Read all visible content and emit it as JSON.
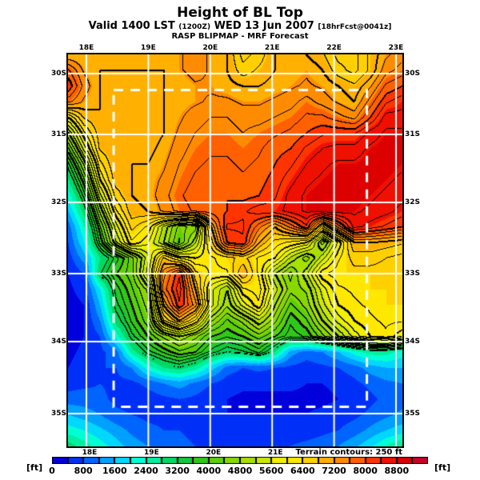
{
  "header": {
    "title": "Height of BL Top",
    "valid_prefix": "Valid 1400 LST",
    "init_time": "(1200Z)",
    "valid_date": "WED 13 Jun 2007",
    "fcst_info": "[18hrFcst@0041z]",
    "model_line": "RASP BLIPMAP - MRF Forecast"
  },
  "map": {
    "lon_tick_labels": [
      "18E",
      "19E",
      "20E",
      "21E",
      "22E",
      "23E"
    ],
    "lon_tick_labels_bottom": [
      "18E",
      "19E",
      "20E",
      "21E"
    ],
    "lat_tick_labels": [
      "30S",
      "31S",
      "32S",
      "33S",
      "34S",
      "35S"
    ],
    "terrain_note": "Terrain contours: 250 ft"
  },
  "colorbar": {
    "unit_left": "[ft]",
    "unit_right": "[ft]",
    "tick_labels": [
      "0",
      "800",
      "1600",
      "2400",
      "3200",
      "4000",
      "4800",
      "5600",
      "6400",
      "7200",
      "8000",
      "8800"
    ],
    "colors": [
      "#0000dc",
      "#0030f8",
      "#0064ff",
      "#00a0ff",
      "#00d8ff",
      "#00ffd4",
      "#00f0a0",
      "#00d866",
      "#10c83c",
      "#30c818",
      "#5cd008",
      "#88d800",
      "#a8e000",
      "#cce800",
      "#f0f000",
      "#ffe800",
      "#ffd000",
      "#ffb000",
      "#ff8c00",
      "#ff6000",
      "#ff3400",
      "#f01000",
      "#dc0000",
      "#c80028"
    ]
  },
  "chart_data": {
    "type": "heatmap",
    "title": "Height of BL Top",
    "units": "ft",
    "value_per_color_step": 400,
    "value_range": [
      0,
      9600
    ],
    "contour_interval_ft": 250,
    "contour_land_threshold_ft": 3050,
    "lon_ticks_deg_e": [
      18,
      19,
      20,
      21,
      22,
      23
    ],
    "lat_ticks_deg_s": [
      30,
      31,
      32,
      33,
      34,
      35
    ],
    "inner_domain_dashed_box": {
      "lon_w": 18.44,
      "lon_e": 22.53,
      "lat_n": 30.24,
      "lat_s": 34.9
    },
    "grid_note": "BL top height (ft) sampled on 22x26 grid, row 0 = north (29.7S), col 0 = west (17.7E)",
    "grid": [
      [
        7000,
        7000,
        7000,
        7000,
        7000,
        7100,
        7100,
        7200,
        7400,
        7200,
        7000,
        6400,
        6600,
        7000,
        7000,
        7000,
        6800,
        6400,
        6400,
        6800,
        7200,
        7400
      ],
      [
        7800,
        7200,
        7000,
        7000,
        7000,
        7000,
        7000,
        7200,
        7400,
        7200,
        7000,
        6600,
        6800,
        7000,
        7100,
        7200,
        7000,
        6600,
        6400,
        6800,
        7400,
        7600
      ],
      [
        8200,
        7400,
        7000,
        6900,
        6900,
        6900,
        7000,
        7000,
        7200,
        7200,
        7100,
        7000,
        7000,
        7100,
        7200,
        7300,
        7200,
        7000,
        6800,
        7200,
        7800,
        8000
      ],
      [
        7600,
        7200,
        7000,
        6900,
        6800,
        6900,
        7000,
        7100,
        7200,
        7300,
        7300,
        7200,
        7200,
        7300,
        7400,
        7600,
        7400,
        7200,
        7000,
        7600,
        8200,
        8400
      ],
      [
        6000,
        6800,
        7000,
        6900,
        6800,
        6800,
        7000,
        7200,
        7400,
        7500,
        7500,
        7400,
        7400,
        7500,
        7600,
        7800,
        7800,
        7600,
        7400,
        8000,
        8600,
        8600
      ],
      [
        5000,
        6200,
        6900,
        6900,
        6800,
        6800,
        7000,
        7300,
        7500,
        7600,
        7600,
        7500,
        7600,
        7700,
        7800,
        8000,
        8200,
        8200,
        8200,
        8600,
        8800,
        8800
      ],
      [
        4200,
        5600,
        6800,
        7000,
        6900,
        6900,
        7100,
        7400,
        7600,
        7700,
        7700,
        7600,
        7700,
        7900,
        8000,
        8300,
        8500,
        8600,
        8600,
        8800,
        8900,
        8900
      ],
      [
        3400,
        4800,
        6400,
        7000,
        7000,
        7000,
        7200,
        7500,
        7700,
        7800,
        7800,
        7700,
        7800,
        8000,
        8200,
        8500,
        8700,
        8800,
        8800,
        8900,
        8900,
        8800
      ],
      [
        2800,
        4200,
        6000,
        6900,
        7000,
        7100,
        7300,
        7600,
        7800,
        7900,
        7900,
        7800,
        7900,
        8100,
        8400,
        8700,
        8800,
        8900,
        8900,
        8900,
        8800,
        8700
      ],
      [
        2200,
        3600,
        5400,
        6600,
        7000,
        7100,
        7400,
        7700,
        7900,
        8000,
        8000,
        7900,
        8000,
        8200,
        8600,
        8800,
        8900,
        8900,
        8900,
        8800,
        8700,
        8600
      ],
      [
        1600,
        3000,
        4800,
        6200,
        6900,
        7000,
        7300,
        7600,
        7800,
        7900,
        8000,
        8200,
        8400,
        8400,
        8600,
        8800,
        8900,
        8900,
        8800,
        8700,
        8600,
        8400
      ],
      [
        1000,
        2400,
        4200,
        5600,
        6600,
        6200,
        5200,
        4400,
        4600,
        7000,
        8300,
        8300,
        7600,
        7000,
        7600,
        8200,
        6400,
        7600,
        8600,
        8400,
        8200,
        8000
      ],
      [
        800,
        2000,
        3800,
        5200,
        6200,
        5800,
        5000,
        4200,
        5200,
        6600,
        8000,
        8200,
        7000,
        6400,
        6200,
        6000,
        4600,
        5800,
        7000,
        7000,
        6900,
        6800
      ],
      [
        600,
        1400,
        2800,
        3600,
        4400,
        5400,
        6800,
        6200,
        6000,
        6200,
        6400,
        6600,
        6200,
        6000,
        5200,
        4600,
        5400,
        6200,
        6600,
        6600,
        6500,
        6400
      ],
      [
        400,
        800,
        3200,
        4000,
        4400,
        5600,
        7400,
        8200,
        6600,
        6200,
        6200,
        7000,
        6200,
        5000,
        4400,
        5200,
        6200,
        6400,
        6400,
        6400,
        6400,
        6400
      ],
      [
        300,
        600,
        2000,
        3600,
        4200,
        4800,
        7600,
        8400,
        7000,
        5600,
        5000,
        6200,
        6400,
        5400,
        4600,
        4800,
        5600,
        6200,
        6300,
        6400,
        6400,
        6400
      ],
      [
        200,
        400,
        1600,
        3400,
        4000,
        4600,
        7000,
        8200,
        7400,
        5600,
        4800,
        5600,
        6200,
        5000,
        4200,
        4600,
        5400,
        6000,
        6200,
        6300,
        6400,
        6400
      ],
      [
        200,
        400,
        1200,
        3000,
        3800,
        4400,
        6200,
        7000,
        6200,
        4800,
        4200,
        4600,
        5200,
        4600,
        3800,
        4200,
        5000,
        5600,
        6000,
        6200,
        6300,
        6300
      ],
      [
        200,
        400,
        800,
        2200,
        3400,
        4000,
        4600,
        5000,
        4600,
        4000,
        3800,
        4000,
        4400,
        4000,
        3600,
        3800,
        4400,
        5000,
        5600,
        6000,
        6200,
        5800
      ],
      [
        300,
        500,
        700,
        1000,
        2600,
        3400,
        3800,
        4200,
        4000,
        3400,
        3000,
        3200,
        3600,
        2800,
        1400,
        1000,
        1200,
        1600,
        2200,
        2600,
        2600,
        2200
      ],
      [
        400,
        600,
        800,
        800,
        1200,
        2200,
        2800,
        3000,
        2600,
        1800,
        1000,
        800,
        900,
        800,
        700,
        600,
        700,
        800,
        1000,
        1400,
        1600,
        1600
      ],
      [
        600,
        700,
        800,
        700,
        700,
        900,
        1200,
        1400,
        1100,
        800,
        600,
        500,
        500,
        500,
        500,
        400,
        400,
        500,
        700,
        900,
        1100,
        1200
      ],
      [
        1000,
        1000,
        900,
        700,
        600,
        600,
        700,
        800,
        700,
        500,
        400,
        300,
        300,
        300,
        300,
        300,
        300,
        400,
        500,
        700,
        900,
        1000
      ],
      [
        1600,
        1400,
        1200,
        900,
        800,
        700,
        700,
        700,
        600,
        500,
        400,
        400,
        400,
        400,
        400,
        400,
        500,
        600,
        700,
        900,
        1100,
        1300
      ],
      [
        2200,
        2000,
        1700,
        1400,
        1100,
        900,
        800,
        800,
        700,
        600,
        500,
        500,
        500,
        500,
        600,
        600,
        700,
        800,
        1000,
        1300,
        1600,
        1800
      ],
      [
        3000,
        2600,
        2200,
        1800,
        1400,
        1200,
        1000,
        900,
        800,
        700,
        600,
        600,
        600,
        700,
        800,
        900,
        1000,
        1200,
        1500,
        1900,
        2400,
        2800
      ]
    ]
  }
}
